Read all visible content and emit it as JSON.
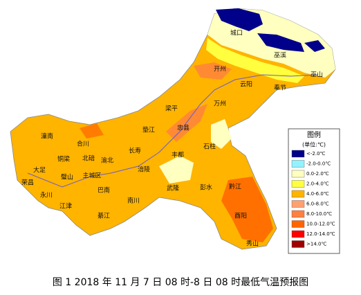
{
  "map": {
    "districts": [
      "城口",
      "巫溪",
      "巫山",
      "开州",
      "云阳",
      "奉节",
      "万州",
      "梁平",
      "忠县",
      "石柱",
      "垫江",
      "长寿",
      "丰都",
      "武隆",
      "彭水",
      "黔江",
      "酉阳",
      "秀山",
      "涪陵",
      "南川",
      "綦江",
      "江津",
      "巴南",
      "渝北",
      "北碚",
      "主城区",
      "璧山",
      "铜梁",
      "大足",
      "永川",
      "荣昌",
      "潼南",
      "合川"
    ],
    "legend": {
      "title": "图例",
      "unit": "(单位:℃)",
      "items": [
        {
          "label": "<-2.0℃",
          "color": "#00008b"
        },
        {
          "label": "-2.0-0.0℃",
          "color": "#90f4ff"
        },
        {
          "label": "0.0-2.0℃",
          "color": "#ffffc0"
        },
        {
          "label": "2.0-4.0℃",
          "color": "#ffff40"
        },
        {
          "label": "4.0-6.0℃",
          "color": "#ffb400"
        },
        {
          "label": "6.0-8.0℃",
          "color": "#ffa070"
        },
        {
          "label": "8.0-10.0℃",
          "color": "#ff8040"
        },
        {
          "label": "10.0-12.0℃",
          "color": "#ff6400"
        },
        {
          "label": "12.0-14.0℃",
          "color": "#ff0000"
        },
        {
          "label": ">14.0℃",
          "color": "#a00000"
        }
      ]
    },
    "caption": "图 1   2018 年 11 月 7 日 08 时-8 日 08 时最低气温预报图"
  }
}
